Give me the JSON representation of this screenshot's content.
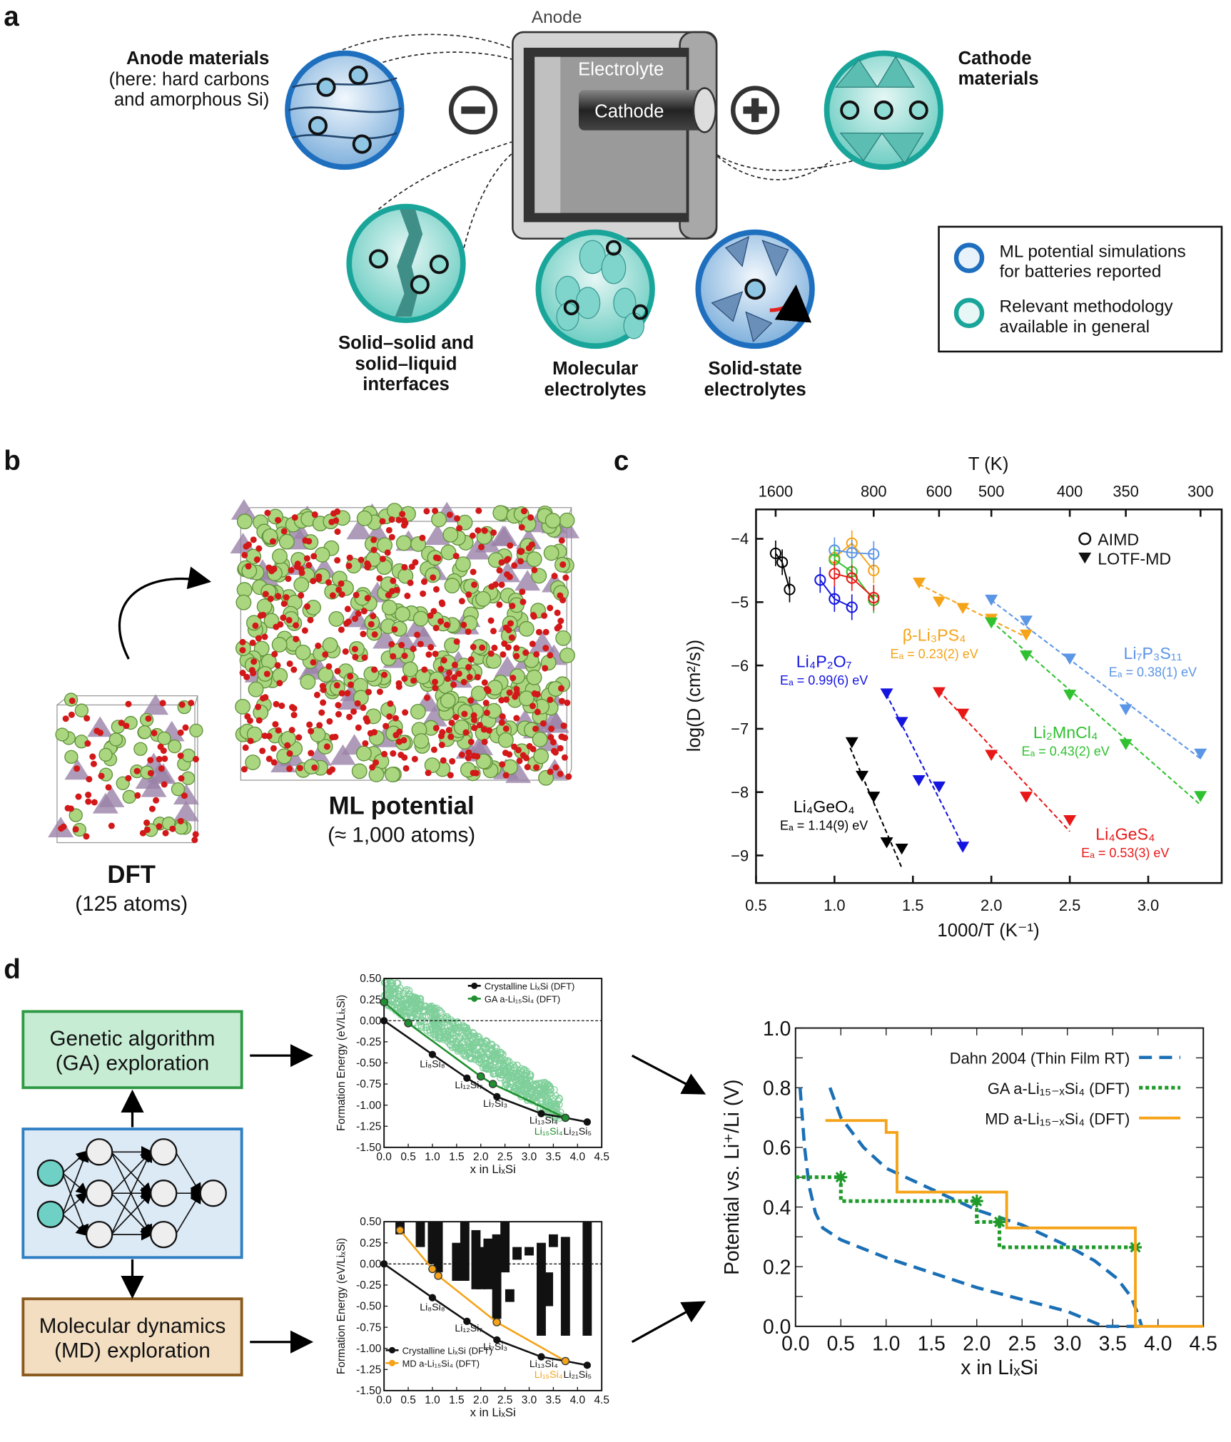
{
  "panel_labels": [
    "a",
    "b",
    "c",
    "d"
  ],
  "panel_a": {
    "anode_label": "Anode",
    "electrolyte_label": "Electrolyte",
    "cathode_label": "Cathode",
    "anode_materials": [
      "Anode materials",
      "(here: hard carbons",
      "and amorphous Si)"
    ],
    "cathode_materials": [
      "Cathode",
      "materials"
    ],
    "interfaces": [
      "Solid–solid and",
      "solid–liquid",
      "interfaces"
    ],
    "molecular": [
      "Molecular",
      "electrolytes"
    ],
    "solid_state": [
      "Solid-state",
      "electrolytes"
    ],
    "legend": [
      {
        "lines": [
          "ML potential simulations",
          "for batteries reported"
        ],
        "color": "#1f6fbf"
      },
      {
        "lines": [
          "Relevant methodology",
          "available in general"
        ],
        "color": "#1aa59a"
      }
    ]
  },
  "panel_b": {
    "dft_title": "DFT",
    "dft_sub": "(125 atoms)",
    "ml_title": "ML potential",
    "ml_sub": "(≈ 1,000 atoms)"
  },
  "panel_d": {
    "ga_box": [
      "Genetic algorithm",
      "(GA) exploration"
    ],
    "md_box": [
      "Molecular dynamics",
      "(MD) exploration"
    ]
  },
  "chart_data": [
    {
      "id": "c",
      "type": "scatter",
      "xlabel": "1000/T (K⁻¹)",
      "ylabel": "log(D (cm²/s))",
      "top_xlabel": "T (K)",
      "xlim": [
        0.5,
        3.45
      ],
      "ylim": [
        -9.45,
        -3.55
      ],
      "xticks": [
        0.5,
        1.0,
        1.5,
        2.0,
        2.5,
        3.0
      ],
      "xtick_labels": [
        "0.5",
        "1.0",
        "1.5",
        "2.0",
        "2.5",
        "3.0"
      ],
      "yticks": [
        -4,
        -5,
        -6,
        -7,
        -8,
        -9
      ],
      "ytick_labels": [
        "−4",
        "−5",
        "−6",
        "−7",
        "−8",
        "−9"
      ],
      "top_ticks": [
        1600,
        800,
        600,
        500,
        400,
        350,
        300
      ],
      "top_tick_labels": [
        "1600",
        "800",
        "600",
        "500",
        "400",
        "350",
        "300"
      ],
      "legend": [
        {
          "label": "AIMD",
          "marker": "circle"
        },
        {
          "label": "LOTF-MD",
          "marker": "triangle"
        }
      ],
      "series": [
        {
          "name": "Li₄GeO₄",
          "ea": "Eₐ = 1.14(9) eV",
          "color": "#000000",
          "aimd": [
            [
              0.625,
              -4.23
            ],
            [
              0.667,
              -4.37
            ],
            [
              0.714,
              -4.8
            ]
          ],
          "lotf": [
            [
              1.111,
              -7.22
            ],
            [
              1.176,
              -7.75
            ],
            [
              1.25,
              -8.08
            ],
            [
              1.333,
              -8.8
            ],
            [
              1.429,
              -8.9
            ]
          ],
          "fit": [
            [
              1.1,
              -7.3
            ],
            [
              1.43,
              -9.2
            ]
          ]
        },
        {
          "name": "Li₄P₂O₇",
          "ea": "Eₐ = 0.99(6) eV",
          "color": "#1515e0",
          "aimd": [
            [
              0.909,
              -4.65
            ],
            [
              1.0,
              -4.95
            ],
            [
              1.111,
              -5.08
            ]
          ],
          "lotf": [
            [
              1.333,
              -6.45
            ],
            [
              1.429,
              -6.9
            ],
            [
              1.538,
              -7.82
            ],
            [
              1.667,
              -7.92
            ],
            [
              1.818,
              -8.87
            ]
          ],
          "fit": [
            [
              1.33,
              -6.45
            ],
            [
              1.82,
              -8.85
            ]
          ]
        },
        {
          "name": "β-Li₃PS₄",
          "ea": "Eₐ = 0.23(2) eV",
          "color": "#f5a318",
          "aimd": [
            [
              1.0,
              -4.3
            ],
            [
              1.111,
              -4.07
            ],
            [
              1.25,
              -4.5
            ]
          ],
          "lotf": [
            [
              1.54,
              -4.7
            ],
            [
              1.667,
              -5.0
            ],
            [
              1.818,
              -5.1
            ],
            [
              2.0,
              -5.27
            ],
            [
              2.222,
              -5.52
            ]
          ],
          "fit": [
            [
              1.54,
              -4.72
            ],
            [
              2.22,
              -5.55
            ]
          ]
        },
        {
          "name": "Li₇P₃S₁₁",
          "ea": "Eₐ = 0.38(1) eV",
          "color": "#5b95e6",
          "aimd": [
            [
              1.0,
              -4.18
            ],
            [
              1.111,
              -4.22
            ],
            [
              1.25,
              -4.24
            ]
          ],
          "lotf": [
            [
              2.0,
              -4.97
            ],
            [
              2.222,
              -5.3
            ],
            [
              2.5,
              -5.9
            ],
            [
              2.857,
              -6.7
            ],
            [
              3.333,
              -7.4
            ]
          ],
          "fit": [
            [
              2.0,
              -4.97
            ],
            [
              3.333,
              -7.47
            ]
          ]
        },
        {
          "name": "Li₂MnCl₄",
          "ea": "Eₐ = 0.43(2) eV",
          "color": "#2fc12f",
          "aimd": [
            [
              1.0,
              -4.33
            ],
            [
              1.111,
              -4.52
            ],
            [
              1.25,
              -4.97
            ]
          ],
          "lotf": [
            [
              2.0,
              -5.33
            ],
            [
              2.222,
              -5.85
            ],
            [
              2.5,
              -6.47
            ],
            [
              2.857,
              -7.25
            ],
            [
              3.333,
              -8.07
            ]
          ],
          "fit": [
            [
              2.0,
              -5.3
            ],
            [
              3.333,
              -8.2
            ]
          ]
        },
        {
          "name": "Li₄GeS₄",
          "ea": "Eₐ = 0.53(3) eV",
          "color": "#e81818",
          "aimd": [
            [
              1.0,
              -4.55
            ],
            [
              1.111,
              -4.62
            ],
            [
              1.25,
              -4.93
            ]
          ],
          "lotf": [
            [
              1.667,
              -6.43
            ],
            [
              1.818,
              -6.77
            ],
            [
              2.0,
              -7.42
            ],
            [
              2.222,
              -8.08
            ],
            [
              2.5,
              -8.45
            ]
          ],
          "fit": [
            [
              1.667,
              -6.4
            ],
            [
              2.5,
              -8.62
            ]
          ]
        }
      ]
    },
    {
      "id": "d-top",
      "type": "scatter",
      "xlabel": "x in LiₓSi",
      "ylabel": "Formation Energy (eV/LiₓSi)",
      "xlim": [
        0,
        4.5
      ],
      "ylim": [
        -1.5,
        0.5
      ],
      "xtick_labels": [
        "0.0",
        "0.5",
        "1.0",
        "1.5",
        "2.0",
        "2.5",
        "3.0",
        "3.5",
        "4.0",
        "4.5"
      ],
      "ytick_labels": [
        "0.50",
        "0.25",
        "0.00",
        "-0.25",
        "-0.50",
        "-0.75",
        "-1.00",
        "-1.25",
        "-1.50"
      ],
      "legend": [
        "Crystalline LiₓSi (DFT)",
        "GA a-Li₁₅Si₄ (DFT)"
      ],
      "crystalline": [
        [
          0,
          0
        ],
        [
          1,
          -0.4
        ],
        [
          1.714,
          -0.68
        ],
        [
          2.333,
          -0.9
        ],
        [
          3.25,
          -1.1
        ],
        [
          3.75,
          -1.15
        ],
        [
          4.2,
          -1.2
        ]
      ],
      "crystalline_labels": [
        "Li₈Si₈",
        "Li₁₂Si₇",
        "Li₇Si₃",
        "Li₁₃Si₄",
        "Li₁₅Si₄",
        "Li₂₁Si₅"
      ],
      "hull": [
        [
          0,
          0.22
        ],
        [
          0.5,
          -0.03
        ],
        [
          2.0,
          -0.66
        ],
        [
          2.25,
          -0.75
        ],
        [
          3.75,
          -1.15
        ]
      ],
      "hull_color": "#1f8f2f",
      "cloud_color": "#7fcf9a"
    },
    {
      "id": "d-bottom",
      "type": "scatter",
      "xlabel": "x in LiₓSi",
      "ylabel": "Formation Energy (eV/LiₓSi)",
      "xlim": [
        0,
        4.5
      ],
      "ylim": [
        -1.5,
        0.5
      ],
      "xtick_labels": [
        "0.0",
        "0.5",
        "1.0",
        "1.5",
        "2.0",
        "2.5",
        "3.0",
        "3.5",
        "4.0",
        "4.5"
      ],
      "ytick_labels": [
        "0.50",
        "0.25",
        "0.00",
        "-0.25",
        "-0.50",
        "-0.75",
        "-1.00",
        "-1.25",
        "-1.50"
      ],
      "legend": [
        "Crystalline LiₓSi (DFT)",
        "MD a-Li₁₅Si₄ (DFT)"
      ],
      "crystalline": [
        [
          0,
          0
        ],
        [
          1,
          -0.4
        ],
        [
          1.714,
          -0.68
        ],
        [
          2.333,
          -0.9
        ],
        [
          3.25,
          -1.1
        ],
        [
          3.75,
          -1.15
        ],
        [
          4.2,
          -1.2
        ]
      ],
      "crystalline_labels": [
        "Li₈Si₈",
        "Li₁₂Si₇",
        "Li₇Si₃",
        "Li₁₃Si₄",
        "Li₁₅Si₄",
        "Li₂₁Si₅"
      ],
      "hull": [
        [
          0.33,
          0.4
        ],
        [
          1.0,
          -0.06
        ],
        [
          1.12,
          -0.14
        ],
        [
          2.33,
          -0.69
        ],
        [
          3.75,
          -1.15
        ]
      ],
      "hull_color": "#f5a318",
      "bars": [
        [
          0.33,
          0.35,
          0.5
        ],
        [
          0.75,
          0.2,
          0.5
        ],
        [
          1.0,
          0.0,
          0.5
        ],
        [
          1.12,
          -0.1,
          0.5
        ],
        [
          1.5,
          -0.2,
          0.25
        ],
        [
          1.67,
          -0.2,
          0.5
        ],
        [
          1.9,
          -0.3,
          0.4
        ],
        [
          2.0,
          -0.3,
          0.2
        ],
        [
          2.15,
          -0.3,
          0.3
        ],
        [
          2.33,
          -0.65,
          0.35
        ],
        [
          2.5,
          -0.1,
          0.5
        ],
        [
          2.6,
          -0.45,
          -0.3
        ],
        [
          2.75,
          0.05,
          0.2
        ],
        [
          3.0,
          0.1,
          0.2
        ],
        [
          3.25,
          -0.85,
          0.25
        ],
        [
          3.4,
          -0.5,
          -0.1
        ],
        [
          3.5,
          0.2,
          0.35
        ],
        [
          3.75,
          -0.85,
          0.32
        ],
        [
          4.2,
          -0.85,
          0.5
        ]
      ]
    },
    {
      "id": "d-right",
      "type": "line",
      "xlabel": "x in LiₓSi",
      "ylabel": "Potential vs. Li⁺/Li (V)",
      "xlim": [
        0,
        4.5
      ],
      "ylim": [
        0,
        1.0
      ],
      "xtick_labels": [
        "0.0",
        "0.5",
        "1.0",
        "1.5",
        "2.0",
        "2.5",
        "3.0",
        "3.5",
        "4.0",
        "4.5"
      ],
      "ytick_labels": [
        "0.0",
        "0.2",
        "0.4",
        "0.6",
        "0.8",
        "1.0"
      ],
      "legend_position": "top-right",
      "series": [
        {
          "name": "Dahn 2004 (Thin Film RT)",
          "color": "#1a6fb5",
          "style": "dashed",
          "segments": [
            [
              [
                0.05,
                0.8
              ],
              [
                0.1,
                0.6
              ],
              [
                0.15,
                0.47
              ],
              [
                0.22,
                0.38
              ],
              [
                0.3,
                0.33
              ],
              [
                0.5,
                0.29
              ],
              [
                1.0,
                0.23
              ],
              [
                1.5,
                0.18
              ],
              [
                2.0,
                0.13
              ],
              [
                2.5,
                0.09
              ],
              [
                3.0,
                0.05
              ],
              [
                3.4,
                0.0
              ],
              [
                3.8,
                0.0
              ]
            ],
            [
              [
                0.38,
                0.8
              ],
              [
                0.5,
                0.7
              ],
              [
                0.75,
                0.6
              ],
              [
                1.0,
                0.53
              ],
              [
                1.5,
                0.46
              ],
              [
                2.0,
                0.39
              ],
              [
                2.5,
                0.34
              ],
              [
                3.0,
                0.27
              ],
              [
                3.3,
                0.22
              ],
              [
                3.55,
                0.16
              ],
              [
                3.7,
                0.1
              ],
              [
                3.78,
                0.04
              ],
              [
                3.82,
                0.0
              ]
            ]
          ]
        },
        {
          "name": "GA a-Li₁₅₋ₓSi₄ (DFT)",
          "color": "#1f9a2a",
          "style": "dotted",
          "points": [
            [
              0,
              0.5
            ],
            [
              0.5,
              0.5
            ],
            [
              0.5,
              0.42
            ],
            [
              2.0,
              0.42
            ],
            [
              2.0,
              0.35
            ],
            [
              2.25,
              0.35
            ],
            [
              2.25,
              0.265
            ],
            [
              3.75,
              0.265
            ]
          ],
          "markers": [
            [
              0.5,
              0.5
            ],
            [
              2.0,
              0.42
            ],
            [
              2.25,
              0.35
            ],
            [
              3.75,
              0.265
            ]
          ]
        },
        {
          "name": "MD a-Li₁₅₋ₓSi₄ (DFT)",
          "color": "#f5a318",
          "style": "solid",
          "points": [
            [
              0.33,
              0.69
            ],
            [
              1.0,
              0.69
            ],
            [
              1.0,
              0.65
            ],
            [
              1.12,
              0.65
            ],
            [
              1.12,
              0.45
            ],
            [
              2.33,
              0.45
            ],
            [
              2.33,
              0.33
            ],
            [
              3.75,
              0.33
            ],
            [
              3.75,
              0.0
            ],
            [
              4.5,
              0.0
            ]
          ]
        }
      ]
    }
  ]
}
